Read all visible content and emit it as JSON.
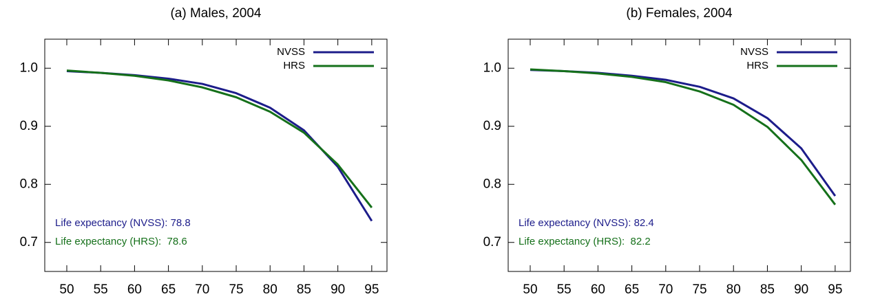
{
  "chart_data": [
    {
      "type": "line",
      "title": "(a) Males, 2004",
      "x": [
        50,
        55,
        60,
        65,
        70,
        75,
        80,
        85,
        90,
        95
      ],
      "series": [
        {
          "name": "NVSS",
          "color": "#1c1c8a",
          "values": [
            0.995,
            0.992,
            0.988,
            0.982,
            0.973,
            0.957,
            0.932,
            0.893,
            0.83,
            0.737
          ]
        },
        {
          "name": "HRS",
          "color": "#15701a",
          "values": [
            0.996,
            0.992,
            0.987,
            0.979,
            0.967,
            0.95,
            0.925,
            0.889,
            0.834,
            0.76
          ]
        }
      ],
      "xlim": [
        46.75,
        97.25
      ],
      "xticks": [
        50,
        55,
        60,
        65,
        70,
        75,
        80,
        85,
        90,
        95
      ],
      "ylim": [
        0.65,
        1.05
      ],
      "yticks": [
        0.7,
        0.8,
        0.9,
        {
          "value": 1,
          "label": "1.0"
        }
      ],
      "grid": false,
      "legend": "top-right",
      "annotations": [
        {
          "text": "Life expectancy (NVSS): 78.8",
          "color": "#1c1c8a"
        },
        {
          "text": "Life expectancy (HRS):  78.6",
          "color": "#15701a"
        }
      ]
    },
    {
      "type": "line",
      "title": "(b) Females, 2004",
      "x": [
        50,
        55,
        60,
        65,
        70,
        75,
        80,
        85,
        90,
        95
      ],
      "series": [
        {
          "name": "NVSS",
          "color": "#1c1c8a",
          "values": [
            0.997,
            0.995,
            0.992,
            0.987,
            0.98,
            0.968,
            0.948,
            0.914,
            0.862,
            0.78
          ]
        },
        {
          "name": "HRS",
          "color": "#15701a",
          "values": [
            0.998,
            0.995,
            0.991,
            0.985,
            0.976,
            0.96,
            0.937,
            0.899,
            0.842,
            0.765
          ]
        }
      ],
      "xlim": [
        46.75,
        97.25
      ],
      "xticks": [
        50,
        55,
        60,
        65,
        70,
        75,
        80,
        85,
        90,
        95
      ],
      "ylim": [
        0.65,
        1.05
      ],
      "yticks": [
        0.7,
        0.8,
        0.9,
        {
          "value": 1,
          "label": "1.0"
        }
      ],
      "grid": false,
      "legend": "top-right",
      "annotations": [
        {
          "text": "Life expectancy (NVSS): 82.4",
          "color": "#1c1c8a"
        },
        {
          "text": "Life expectancy (HRS):  82.2",
          "color": "#15701a"
        }
      ]
    }
  ]
}
